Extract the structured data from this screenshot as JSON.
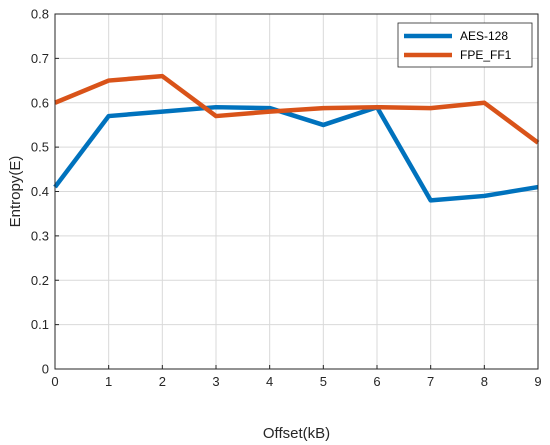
{
  "chart_data": {
    "type": "line",
    "title": "",
    "xlabel": "Offset(kB)",
    "ylabel": "Entropy(E)",
    "x": [
      0,
      1,
      2,
      3,
      4,
      5,
      6,
      7,
      8,
      9
    ],
    "xlim": [
      0,
      9
    ],
    "ylim": [
      0,
      0.8
    ],
    "xticks": [
      "0",
      "1",
      "2",
      "3",
      "4",
      "5",
      "6",
      "7",
      "8",
      "9"
    ],
    "yticks": [
      "0",
      "0.1",
      "0.2",
      "0.3",
      "0.4",
      "0.5",
      "0.6",
      "0.7",
      "0.8"
    ],
    "grid": true,
    "legend_position": "top-right",
    "series": [
      {
        "name": "AES-128",
        "color": "#0072BD",
        "values": [
          0.41,
          0.57,
          0.58,
          0.59,
          0.588,
          0.55,
          0.59,
          0.38,
          0.39,
          0.41
        ]
      },
      {
        "name": "FPE_FF1",
        "color": "#D95319",
        "values": [
          0.6,
          0.65,
          0.66,
          0.57,
          0.58,
          0.588,
          0.59,
          0.588,
          0.6,
          0.51
        ]
      }
    ]
  }
}
